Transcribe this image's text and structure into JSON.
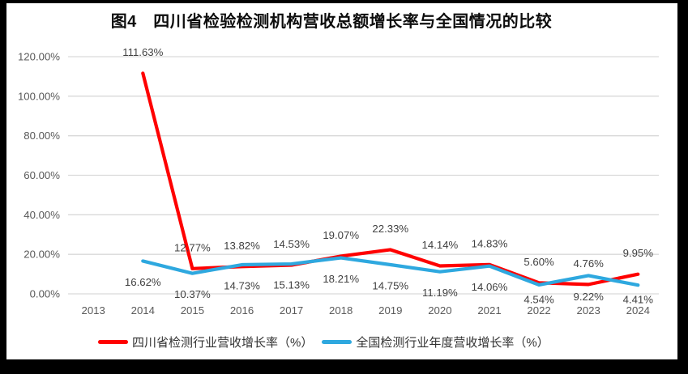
{
  "title": "图4　四川省检验检测机构营收总额增长率与全国情况的比较",
  "colors": {
    "frame": "#000000",
    "background": "#FFFFFF",
    "gridline": "#D9D9D9",
    "axis_text": "#595959",
    "data_label_text": "#404040",
    "sichuan_red": "#FF0000",
    "national_blue": "#2EA8DF"
  },
  "chart_data": {
    "type": "line",
    "title": "图4　四川省检验检测机构营收总额增长率与全国情况的比较",
    "categories": [
      "2013",
      "2014",
      "2015",
      "2016",
      "2017",
      "2018",
      "2019",
      "2020",
      "2021",
      "2022",
      "2023",
      "2024"
    ],
    "series": [
      {
        "name": "四川省检测行业营收增长率（%）",
        "color": "#FF0000",
        "label_position": "above",
        "values": [
          null,
          111.63,
          12.77,
          13.82,
          14.53,
          19.07,
          22.33,
          14.14,
          14.83,
          5.6,
          4.76,
          9.95
        ],
        "labels": [
          null,
          "111.63%",
          "12.77%",
          "13.82%",
          "14.53%",
          "19.07%",
          "22.33%",
          "14.14%",
          "14.83%",
          "5.60%",
          "4.76%",
          "9.95%"
        ]
      },
      {
        "name": "全国检测行业年度营收增长率（%）",
        "color": "#2EA8DF",
        "label_position": "below",
        "values": [
          null,
          16.62,
          10.37,
          14.73,
          15.13,
          18.21,
          14.75,
          11.19,
          14.06,
          4.54,
          9.22,
          4.41
        ],
        "labels": [
          null,
          "16.62%",
          "10.37%",
          "14.73%",
          "15.13%",
          "18.21%",
          "14.75%",
          "11.19%",
          "14.06%",
          "4.54%",
          "9.22%",
          "4.41%"
        ]
      }
    ],
    "y_axis": {
      "min": 0,
      "max": 120,
      "step": 20,
      "tick_labels": [
        "0.00%",
        "20.00%",
        "40.00%",
        "60.00%",
        "80.00%",
        "100.00%",
        "120.00%"
      ]
    },
    "grid": true,
    "legend_position": "bottom"
  }
}
